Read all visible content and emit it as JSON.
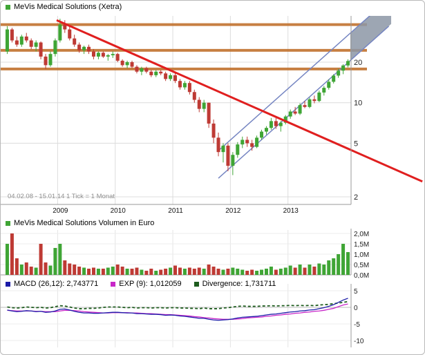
{
  "price_panel": {
    "title": "MeVis Medical Solutions (Xetra)",
    "title_marker_color": "#3FA535",
    "info_text": "04.02.08 - 15.01.14   1 Tick = 1 Monat"
  },
  "volume_panel": {
    "title": "MeVis Medical Solutions Volumen in Euro",
    "title_marker_color": "#3FA535"
  },
  "macd_panel": {
    "legend": [
      {
        "label": "MACD (26,12): 2,743771",
        "color": "#1C1CA8"
      },
      {
        "label": "EXP (9): 1,012059",
        "color": "#C826C8"
      },
      {
        "label": "Divergence: 1,731711",
        "color": "#1E5C1E"
      }
    ]
  },
  "chart_data": [
    {
      "type": "candlestick",
      "title": "MeVis Medical Solutions (Xetra)",
      "x_start": "2008-02",
      "x_end": "2014-01",
      "x_unit": "1 Tick = 1 Monat",
      "scale": "log",
      "ylim": [
        1.8,
        44
      ],
      "y_ticks": [
        20,
        10,
        5,
        2
      ],
      "y_tick_labels": [
        "20",
        "10",
        "5",
        "2"
      ],
      "year_labels": [
        {
          "label": "2009",
          "month": 11
        },
        {
          "label": "2010",
          "month": 23
        },
        {
          "label": "2011",
          "month": 35
        },
        {
          "label": "2012",
          "month": 47
        },
        {
          "label": "2013",
          "month": 59
        }
      ],
      "up_color": "#3FA535",
      "down_color": "#BE3A34",
      "horizontal_levels": [
        38,
        24.5,
        17.8
      ],
      "level_color": "#C1722E",
      "downtrend_line": {
        "color": "#E01F1F",
        "x1": 10.8,
        "v1": 41,
        "x2": 87,
        "v2": 2.6
      },
      "channel": {
        "color": "#7585C2",
        "fill": "#8C96A6",
        "lower": {
          "x1": 44.5,
          "v1": 2.75,
          "x2": 80,
          "v2": 37
        },
        "upper": {
          "x1": 44.5,
          "v1": 4.4,
          "x2": 80,
          "v2": 59
        },
        "fill_from_month": 72,
        "fill_to_month": 80.5
      },
      "candles_ohlc": [
        [
          24,
          37,
          23,
          35
        ],
        [
          35,
          36,
          28,
          29
        ],
        [
          29,
          31,
          26,
          27
        ],
        [
          27,
          32,
          26,
          31
        ],
        [
          31,
          33,
          28,
          29
        ],
        [
          29,
          30,
          25,
          26
        ],
        [
          26,
          29,
          24,
          28
        ],
        [
          28,
          28.5,
          21,
          22
        ],
        [
          22,
          23,
          17.8,
          19
        ],
        [
          19,
          24,
          18.5,
          23
        ],
        [
          23,
          30,
          22,
          29
        ],
        [
          29,
          42,
          28,
          38
        ],
        [
          38,
          41,
          33,
          35
        ],
        [
          35,
          37,
          29,
          30
        ],
        [
          30,
          32,
          26,
          27
        ],
        [
          27,
          28,
          23.5,
          24.5
        ],
        [
          24.5,
          26.5,
          23,
          26
        ],
        [
          26,
          27,
          23,
          24
        ],
        [
          24,
          25,
          21,
          22
        ],
        [
          22,
          24,
          21,
          23.5
        ],
        [
          23.5,
          24,
          21.5,
          22
        ],
        [
          22,
          23,
          20.5,
          22.5
        ],
        [
          22.5,
          24,
          21.5,
          23
        ],
        [
          23,
          23.5,
          20,
          20.5
        ],
        [
          20.5,
          21,
          18.5,
          19
        ],
        [
          19,
          20.5,
          18,
          20
        ],
        [
          20,
          20.5,
          18,
          18.5
        ],
        [
          18.5,
          19,
          16.5,
          17
        ],
        [
          17,
          18.5,
          16,
          18
        ],
        [
          18,
          18.5,
          16.5,
          17
        ],
        [
          17,
          17.5,
          15.5,
          16
        ],
        [
          16,
          17.5,
          15.5,
          17
        ],
        [
          17,
          17.5,
          16,
          16.5
        ],
        [
          16.5,
          17,
          14.5,
          15
        ],
        [
          15,
          16.5,
          14.5,
          16
        ],
        [
          16,
          16.5,
          14,
          14.5
        ],
        [
          14.5,
          15,
          12.5,
          13
        ],
        [
          13,
          14.5,
          12.5,
          14
        ],
        [
          14,
          14.5,
          11.5,
          12
        ],
        [
          12,
          12.5,
          10,
          10.5
        ],
        [
          10.5,
          11,
          8.5,
          9
        ],
        [
          9,
          10.5,
          8.5,
          10
        ],
        [
          10,
          10,
          6.5,
          7
        ],
        [
          7,
          7.5,
          5,
          5.5
        ],
        [
          5.5,
          6,
          4,
          4.3
        ],
        [
          4.3,
          5,
          3.6,
          4.8
        ],
        [
          4.8,
          5,
          3.1,
          3.4
        ],
        [
          3.4,
          4.3,
          2.9,
          4.1
        ],
        [
          4.1,
          5.1,
          3.9,
          4.9
        ],
        [
          4.9,
          5.6,
          4.6,
          5.3
        ],
        [
          5.3,
          5.6,
          4.7,
          5
        ],
        [
          5,
          5.3,
          4.4,
          4.7
        ],
        [
          4.7,
          5.7,
          4.6,
          5.5
        ],
        [
          5.5,
          6.3,
          5.3,
          6.1
        ],
        [
          6.1,
          6.7,
          5.8,
          6.5
        ],
        [
          6.5,
          7.7,
          6.3,
          7.3
        ],
        [
          7.3,
          7.7,
          6.4,
          6.7
        ],
        [
          6.7,
          7.3,
          6.1,
          7.1
        ],
        [
          7.1,
          8.1,
          6.9,
          7.9
        ],
        [
          7.9,
          8.9,
          7.6,
          8.6
        ],
        [
          8.6,
          9.3,
          8.1,
          8.3
        ],
        [
          8.3,
          9.9,
          8.1,
          9.6
        ],
        [
          9.6,
          10.3,
          9.1,
          9.3
        ],
        [
          9.3,
          10.9,
          9.1,
          10.6
        ],
        [
          10.6,
          11.3,
          9.9,
          10.3
        ],
        [
          10.3,
          12.3,
          10.1,
          11.9
        ],
        [
          11.9,
          13.3,
          11.3,
          12.9
        ],
        [
          12.9,
          14.9,
          12.5,
          14.3
        ],
        [
          14.3,
          16.3,
          13.9,
          15.9
        ],
        [
          15.9,
          17.9,
          15.3,
          17.3
        ],
        [
          17.3,
          19.3,
          16.3,
          18.9
        ],
        [
          18.9,
          21,
          18.3,
          20.4
        ]
      ]
    },
    {
      "type": "bar",
      "title": "MeVis Medical Solutions Volumen in Euro",
      "ylabel": "Volumen in Euro",
      "y_ticks_m": [
        2.0,
        1.5,
        1.0,
        0.5,
        0.0
      ],
      "y_tick_labels": [
        "2,0M",
        "1,5M",
        "1,0M",
        "0,5M",
        "0,0M"
      ],
      "up_color": "#3FA535",
      "down_color": "#BE3A34",
      "values_m": [
        1.5,
        2.0,
        0.8,
        0.5,
        0.6,
        0.4,
        0.35,
        1.5,
        0.6,
        0.45,
        1.3,
        1.5,
        0.7,
        0.55,
        0.5,
        0.4,
        0.35,
        0.3,
        0.35,
        0.3,
        0.3,
        0.35,
        0.4,
        0.5,
        0.4,
        0.3,
        0.3,
        0.35,
        0.25,
        0.2,
        0.3,
        0.2,
        0.25,
        0.3,
        0.35,
        0.45,
        0.35,
        0.3,
        0.35,
        0.3,
        0.35,
        0.3,
        0.5,
        0.4,
        0.3,
        0.25,
        0.3,
        0.35,
        0.3,
        0.25,
        0.2,
        0.25,
        0.2,
        0.25,
        0.3,
        0.4,
        0.25,
        0.3,
        0.35,
        0.45,
        0.35,
        0.5,
        0.35,
        0.5,
        0.4,
        0.55,
        0.5,
        0.7,
        0.8,
        1.0,
        1.5,
        1.1
      ]
    },
    {
      "type": "line",
      "title": "MACD indicator",
      "y_ticks": [
        5,
        0,
        -5,
        -10
      ],
      "y_tick_labels": [
        "5",
        "0",
        "-5",
        "-10"
      ],
      "series": [
        {
          "name": "MACD (26,12)",
          "last_value": 2.743771,
          "color": "#1C1CA8",
          "values": [
            -0.8,
            -1.1,
            -1.3,
            -1.2,
            -1.0,
            -1.1,
            -1.3,
            -1.2,
            -1.5,
            -1.4,
            -1.1,
            -0.6,
            -0.5,
            -0.8,
            -1.2,
            -1.5,
            -1.7,
            -1.7,
            -1.8,
            -1.8,
            -1.7,
            -1.6,
            -1.5,
            -1.5,
            -1.6,
            -1.7,
            -1.7,
            -1.9,
            -1.9,
            -2.0,
            -2.1,
            -2.1,
            -2.2,
            -2.4,
            -2.3,
            -2.4,
            -2.6,
            -2.7,
            -2.9,
            -3.1,
            -3.3,
            -3.3,
            -3.6,
            -3.8,
            -3.9,
            -3.8,
            -3.7,
            -3.5,
            -3.2,
            -3.0,
            -2.9,
            -2.8,
            -2.7,
            -2.5,
            -2.3,
            -2.1,
            -2.0,
            -1.8,
            -1.6,
            -1.4,
            -1.3,
            -1.1,
            -1.0,
            -0.8,
            -0.7,
            -0.4,
            -0.1,
            0.3,
            0.8,
            1.5,
            2.2,
            2.743771
          ]
        },
        {
          "name": "EXP (9)",
          "last_value": 1.012059,
          "color": "#C826C8",
          "values": [
            -0.9,
            -1.0,
            -1.1,
            -1.1,
            -1.1,
            -1.1,
            -1.2,
            -1.2,
            -1.3,
            -1.3,
            -1.3,
            -1.1,
            -0.9,
            -0.9,
            -1.0,
            -1.1,
            -1.3,
            -1.4,
            -1.5,
            -1.6,
            -1.7,
            -1.7,
            -1.6,
            -1.6,
            -1.6,
            -1.6,
            -1.7,
            -1.7,
            -1.8,
            -1.9,
            -1.9,
            -2.0,
            -2.1,
            -2.2,
            -2.2,
            -2.3,
            -2.4,
            -2.5,
            -2.6,
            -2.8,
            -2.9,
            -3.1,
            -3.2,
            -3.4,
            -3.5,
            -3.6,
            -3.6,
            -3.6,
            -3.5,
            -3.4,
            -3.2,
            -3.1,
            -3.0,
            -2.9,
            -2.7,
            -2.6,
            -2.4,
            -2.3,
            -2.1,
            -2.0,
            -1.8,
            -1.7,
            -1.5,
            -1.4,
            -1.2,
            -1.1,
            -0.9,
            -0.6,
            -0.3,
            0.2,
            0.7,
            1.012059
          ]
        },
        {
          "name": "Divergence",
          "last_value": 1.731711,
          "color": "#1E5C1E",
          "derived": "macd-exp",
          "style": "dashed"
        }
      ]
    }
  ]
}
